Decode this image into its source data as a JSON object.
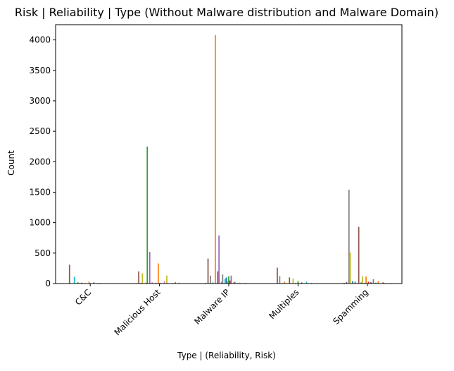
{
  "chart_data": {
    "type": "bar",
    "title": "Risk | Reliability | Type (Without Malware distribution and Malware Domain)",
    "xlabel": "Type | (Reliability, Risk)",
    "ylabel": "Count",
    "ylim": [
      0,
      4250
    ],
    "yticks": [
      0,
      500,
      1000,
      1500,
      2000,
      2500,
      3000,
      3500,
      4000
    ],
    "categories": [
      "C&C",
      "Malicious Host",
      "Malware IP",
      "Multiples",
      "Spamming"
    ],
    "grid": false,
    "legend": "none",
    "colors": [
      "#1f77b4",
      "#ff7f0e",
      "#2ca02c",
      "#d62728",
      "#9467bd",
      "#8c564b",
      "#e377c2",
      "#7f7f7f",
      "#bcbd22",
      "#17becf"
    ],
    "series_values": [
      [
        0,
        2,
        0,
        5,
        0,
        310,
        0,
        3,
        0,
        110,
        0,
        0,
        20,
        0,
        0,
        15,
        0,
        0,
        8,
        0,
        0,
        30,
        0,
        6,
        0,
        20,
        0,
        0,
        10,
        0,
        8,
        0,
        0,
        5,
        0,
        0,
        5,
        0,
        3,
        0,
        0,
        2,
        0,
        1,
        0
      ],
      [
        0,
        3,
        0,
        8,
        0,
        200,
        0,
        10,
        170,
        0,
        0,
        15,
        2250,
        0,
        520,
        0,
        20,
        0,
        0,
        12,
        0,
        330,
        0,
        10,
        0,
        0,
        40,
        0,
        130,
        0,
        5,
        0,
        0,
        8,
        0,
        20,
        0,
        0,
        15,
        0,
        0,
        5,
        0,
        3,
        0
      ],
      [
        0,
        5,
        0,
        10,
        0,
        410,
        0,
        130,
        0,
        20,
        0,
        4080,
        0,
        200,
        790,
        0,
        30,
        150,
        0,
        80,
        100,
        40,
        120,
        50,
        130,
        0,
        20,
        30,
        0,
        10,
        0,
        15,
        5,
        0,
        8,
        0,
        12,
        0,
        3,
        0,
        5,
        0,
        2,
        0,
        1
      ],
      [
        0,
        2,
        0,
        4,
        0,
        260,
        0,
        120,
        0,
        8,
        0,
        30,
        0,
        5,
        0,
        100,
        0,
        0,
        80,
        0,
        10,
        0,
        40,
        5,
        0,
        20,
        0,
        4,
        0,
        30,
        0,
        3,
        0,
        10,
        0,
        2,
        0,
        5,
        0,
        1,
        0,
        3,
        0,
        1,
        0
      ],
      [
        0,
        4,
        0,
        12,
        0,
        25,
        0,
        1540,
        510,
        0,
        40,
        0,
        30,
        0,
        0,
        930,
        0,
        20,
        120,
        0,
        10,
        115,
        0,
        30,
        0,
        25,
        0,
        70,
        0,
        15,
        0,
        40,
        0,
        5,
        0,
        20,
        0,
        8,
        0,
        4,
        0,
        10,
        0,
        2,
        0
      ]
    ]
  }
}
